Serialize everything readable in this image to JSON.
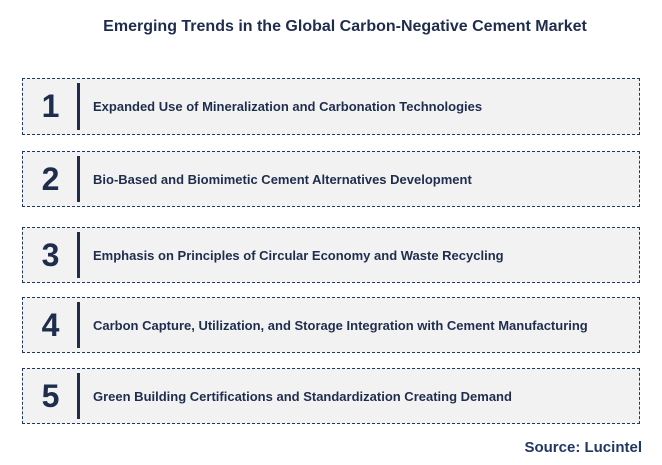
{
  "title": "Emerging Trends in the Global Carbon-Negative Cement Market",
  "trends": [
    {
      "number": "1",
      "text": "Expanded Use  of Mineralization and Carbonation Technologies"
    },
    {
      "number": "2",
      "text": "Bio-Based  and Biomimetic Cement Alternatives Development"
    },
    {
      "number": "3",
      "text": "Emphasis  on Principles of Circular Economy  and Waste Recycling"
    },
    {
      "number": "4",
      "text": "Carbon Capture, Utilization, and  Storage Integration with Cement Manufacturing"
    },
    {
      "number": "5",
      "text": "Green Building Certifications  and Standardization Creating Demand"
    }
  ],
  "source": "Source: Lucintel",
  "colors": {
    "text": "#1f2d4d",
    "box_fill": "#f2f2f2",
    "box_border": "#1f3864"
  }
}
